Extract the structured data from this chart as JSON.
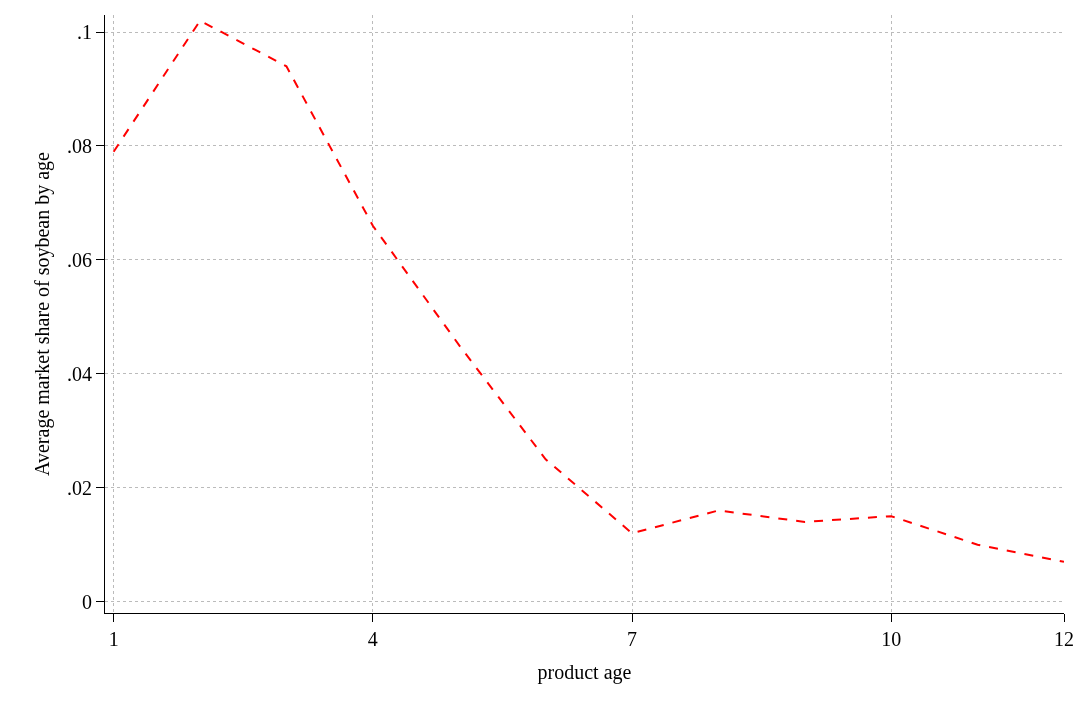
{
  "chart_data": {
    "type": "line",
    "xlabel": "product age",
    "ylabel": "Average market share of soybean by age",
    "x": [
      1,
      2,
      3,
      4,
      5,
      6,
      7,
      8,
      9,
      10,
      11,
      12
    ],
    "series": [
      {
        "color": "#ff0000",
        "values": [
          0.079,
          0.102,
          0.094,
          0.066,
          0.045,
          0.025,
          0.012,
          0.016,
          0.014,
          0.015,
          0.01,
          0.007
        ]
      }
    ],
    "xlim": [
      0.9,
      12
    ],
    "xticks": [
      1,
      4,
      7,
      10,
      12
    ],
    "ylim": [
      -0.002,
      0.103
    ],
    "yticks": [
      0,
      {
        "value": 0.02,
        "label": ".02"
      },
      {
        "value": 0.04,
        "label": ".04"
      },
      {
        "value": 0.06,
        "label": ".06"
      },
      {
        "value": 0.08,
        "label": ".08"
      },
      {
        "value": 0.1,
        "label": ".1"
      }
    ],
    "grid": true,
    "marker": "none",
    "line_style": "dashed"
  }
}
